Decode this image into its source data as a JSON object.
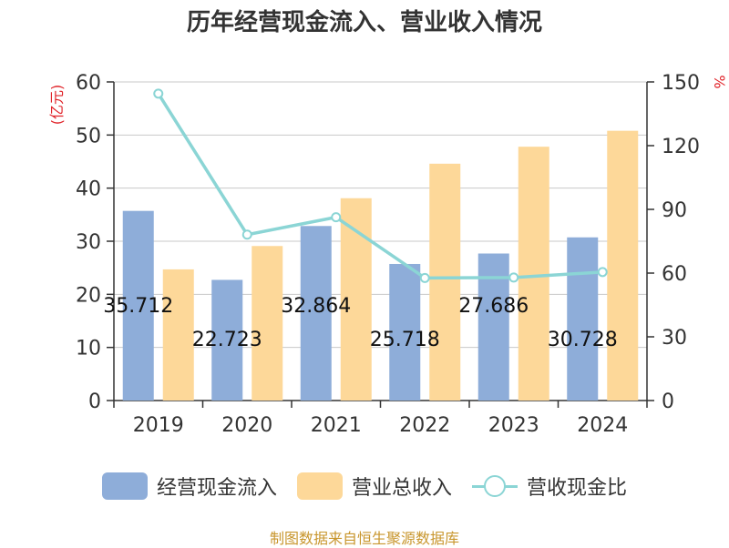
{
  "chart_data": {
    "type": "bar",
    "title": "历年经营现金流入、营业收入情况",
    "categories": [
      "2019",
      "2020",
      "2021",
      "2022",
      "2023",
      "2024"
    ],
    "series": [
      {
        "name": "经营现金流入",
        "type": "bar",
        "axis": "left",
        "color": "#8eadd9",
        "values": [
          35.712,
          22.723,
          32.864,
          25.718,
          27.686,
          30.728
        ],
        "labels": [
          "35.712",
          "22.723",
          "32.864",
          "25.718",
          "27.686",
          "30.728"
        ]
      },
      {
        "name": "营业总收入",
        "type": "bar",
        "axis": "left",
        "color": "#fdd899",
        "values": [
          24.7,
          29.1,
          38.1,
          44.6,
          47.8,
          50.8
        ]
      },
      {
        "name": "营收现金比",
        "type": "line",
        "axis": "right",
        "color": "#8bd5d5",
        "values": [
          144.5,
          78.1,
          86.3,
          57.7,
          57.9,
          60.5
        ]
      }
    ],
    "y_left": {
      "label": "(亿元)",
      "range": [
        0,
        60
      ],
      "ticks": [
        0,
        10,
        20,
        30,
        40,
        50,
        60
      ]
    },
    "y_right": {
      "label": "%",
      "range": [
        0,
        150
      ],
      "ticks": [
        0,
        30,
        60,
        90,
        120,
        150
      ]
    },
    "grid": true,
    "legend": "bottom",
    "source": "制图数据来自恒生聚源数据库",
    "source_color": "#c8962d",
    "axis_label_color": "#e0242a"
  }
}
